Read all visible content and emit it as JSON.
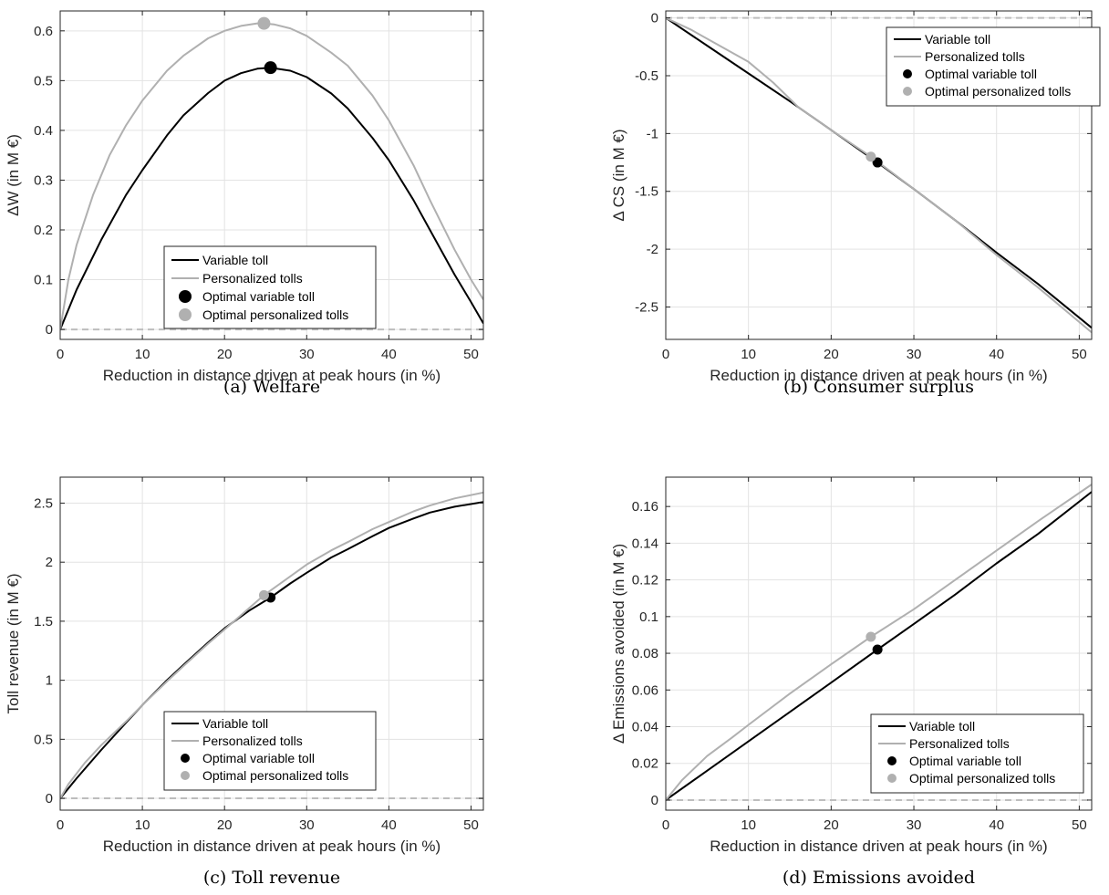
{
  "colors": {
    "variable": "#000000",
    "personalized": "#b0b0b0",
    "zero_line": "#bdbdbd",
    "grid": "#e3e3e3",
    "axis": "#262626"
  },
  "chart_data": [
    {
      "type": "line",
      "caption": "(a) Welfare",
      "xlabel": "Reduction in distance driven at peak hours (in %)",
      "ylabel": "ΔW (in M €)",
      "xlim": [
        0,
        51.5
      ],
      "ylim": [
        -0.02,
        0.64
      ],
      "xticks": [
        0,
        10,
        20,
        30,
        40,
        50
      ],
      "yticks": [
        0,
        0.1,
        0.2,
        0.3,
        0.4,
        0.5,
        0.6
      ],
      "ytick_labels": [
        "0",
        "0.1",
        "0.2",
        "0.3",
        "0.4",
        "0.5",
        "0.6"
      ],
      "grid": true,
      "legend_position": "bottom-center",
      "series": [
        {
          "name": "Variable toll",
          "style": "line",
          "color_key": "variable",
          "x": [
            0,
            2,
            5,
            8,
            10,
            13,
            15,
            18,
            20,
            22,
            24,
            25.6,
            28,
            30,
            33,
            35,
            38,
            40,
            43,
            45,
            48,
            50,
            51.5
          ],
          "y": [
            0,
            0.08,
            0.18,
            0.27,
            0.32,
            0.39,
            0.43,
            0.475,
            0.5,
            0.515,
            0.524,
            0.526,
            0.52,
            0.507,
            0.474,
            0.444,
            0.385,
            0.34,
            0.26,
            0.2,
            0.11,
            0.055,
            0.012
          ]
        },
        {
          "name": "Personalized tolls",
          "style": "line",
          "color_key": "personalized",
          "x": [
            0,
            1,
            2,
            4,
            6,
            8,
            10,
            13,
            15,
            18,
            20,
            22,
            24,
            24.8,
            26,
            28,
            30,
            33,
            35,
            38,
            40,
            43,
            45,
            48,
            50,
            51.5
          ],
          "y": [
            0,
            0.1,
            0.17,
            0.27,
            0.35,
            0.41,
            0.46,
            0.52,
            0.55,
            0.585,
            0.6,
            0.61,
            0.615,
            0.615,
            0.613,
            0.605,
            0.59,
            0.556,
            0.53,
            0.47,
            0.42,
            0.33,
            0.26,
            0.16,
            0.1,
            0.06
          ]
        },
        {
          "name": "Optimal variable toll",
          "style": "marker",
          "color_key": "variable",
          "x": [
            25.6
          ],
          "y": [
            0.526
          ]
        },
        {
          "name": "Optimal personalized tolls",
          "style": "marker",
          "color_key": "personalized",
          "x": [
            24.8
          ],
          "y": [
            0.615
          ]
        }
      ]
    },
    {
      "type": "line",
      "caption": "(b) Consumer surplus",
      "xlabel": "Reduction in distance driven at peak hours (in %)",
      "ylabel": "Δ CS (in M €)",
      "xlim": [
        0,
        51.5
      ],
      "ylim": [
        -2.78,
        0.06
      ],
      "xticks": [
        0,
        10,
        20,
        30,
        40,
        50
      ],
      "yticks": [
        0,
        -0.5,
        -1,
        -1.5,
        -2,
        -2.5
      ],
      "ytick_labels": [
        "0",
        "-0.5",
        "-1",
        "-1.5",
        "-2",
        "-2.5"
      ],
      "grid": true,
      "legend_position": "top-right",
      "series": [
        {
          "name": "Variable toll",
          "style": "line",
          "color_key": "variable",
          "x": [
            0,
            5,
            10,
            15,
            20,
            25.6,
            30,
            35,
            40,
            45,
            51.5
          ],
          "y": [
            0,
            -0.24,
            -0.48,
            -0.72,
            -0.97,
            -1.25,
            -1.48,
            -1.75,
            -2.03,
            -2.3,
            -2.68
          ]
        },
        {
          "name": "Personalized tolls",
          "style": "line",
          "color_key": "personalized",
          "x": [
            0,
            3,
            6,
            10,
            13,
            16,
            20,
            24.8,
            30,
            35,
            40,
            45,
            51.5
          ],
          "y": [
            0,
            -0.1,
            -0.22,
            -0.38,
            -0.56,
            -0.77,
            -0.97,
            -1.2,
            -1.48,
            -1.75,
            -2.05,
            -2.33,
            -2.72
          ]
        },
        {
          "name": "Optimal variable toll",
          "style": "marker",
          "color_key": "variable",
          "x": [
            25.6
          ],
          "y": [
            -1.25
          ]
        },
        {
          "name": "Optimal personalized tolls",
          "style": "marker",
          "color_key": "personalized",
          "x": [
            24.8
          ],
          "y": [
            -1.2
          ]
        }
      ]
    },
    {
      "type": "line",
      "caption": "(c) Toll revenue",
      "xlabel": "Reduction in distance driven at peak hours (in %)",
      "ylabel": "Toll revenue (in M €)",
      "xlim": [
        0,
        51.5
      ],
      "ylim": [
        -0.1,
        2.72
      ],
      "xticks": [
        0,
        10,
        20,
        30,
        40,
        50
      ],
      "yticks": [
        0,
        0.5,
        1,
        1.5,
        2,
        2.5
      ],
      "ytick_labels": [
        "0",
        "0.5",
        "1",
        "1.5",
        "2",
        "2.5"
      ],
      "grid": true,
      "legend_position": "bottom-center",
      "series": [
        {
          "name": "Variable toll",
          "style": "line",
          "color_key": "variable",
          "x": [
            0,
            2,
            5,
            8,
            10,
            13,
            15,
            18,
            20,
            23,
            25.6,
            28,
            30,
            33,
            35,
            38,
            40,
            43,
            45,
            48,
            51.5
          ],
          "y": [
            0,
            0.17,
            0.41,
            0.64,
            0.79,
            1.0,
            1.13,
            1.32,
            1.44,
            1.59,
            1.7,
            1.82,
            1.91,
            2.04,
            2.11,
            2.22,
            2.29,
            2.37,
            2.42,
            2.47,
            2.51
          ]
        },
        {
          "name": "Personalized tolls",
          "style": "line",
          "color_key": "personalized",
          "x": [
            0,
            1,
            3,
            5,
            8,
            10,
            13,
            15,
            18,
            20,
            22,
            24.8,
            27,
            30,
            33,
            35,
            38,
            40,
            43,
            45,
            48,
            51.5
          ],
          "y": [
            0,
            0.12,
            0.3,
            0.45,
            0.65,
            0.79,
            0.99,
            1.12,
            1.31,
            1.43,
            1.55,
            1.72,
            1.83,
            1.98,
            2.1,
            2.17,
            2.28,
            2.34,
            2.43,
            2.48,
            2.54,
            2.59
          ]
        },
        {
          "name": "Optimal variable toll",
          "style": "marker",
          "color_key": "variable",
          "x": [
            25.6
          ],
          "y": [
            1.7
          ]
        },
        {
          "name": "Optimal personalized tolls",
          "style": "marker",
          "color_key": "personalized",
          "x": [
            24.8
          ],
          "y": [
            1.72
          ]
        }
      ]
    },
    {
      "type": "line",
      "caption": "(d) Emissions avoided",
      "xlabel": "Reduction in distance driven at peak hours (in %)",
      "ylabel": "Δ Emissions avoided (in M €)",
      "xlim": [
        0,
        51.5
      ],
      "ylim": [
        -0.0055,
        0.176
      ],
      "xticks": [
        0,
        10,
        20,
        30,
        40,
        50
      ],
      "yticks": [
        0,
        0.02,
        0.04,
        0.06,
        0.08,
        0.1,
        0.12,
        0.14,
        0.16
      ],
      "ytick_labels": [
        "0",
        "0.02",
        "0.04",
        "0.06",
        "0.08",
        "0.1",
        "0.12",
        "0.14",
        "0.16"
      ],
      "grid": true,
      "legend_position": "bottom-right",
      "series": [
        {
          "name": "Variable toll",
          "style": "line",
          "color_key": "variable",
          "x": [
            0,
            5,
            10,
            15,
            20,
            25.6,
            30,
            35,
            40,
            45,
            51.5
          ],
          "y": [
            0,
            0.016,
            0.032,
            0.048,
            0.064,
            0.082,
            0.096,
            0.112,
            0.129,
            0.145,
            0.168
          ]
        },
        {
          "name": "Personalized tolls",
          "style": "line",
          "color_key": "personalized",
          "x": [
            0,
            2,
            5,
            8,
            10,
            15,
            20,
            24.8,
            30,
            35,
            40,
            45,
            51.5
          ],
          "y": [
            0,
            0.011,
            0.024,
            0.034,
            0.041,
            0.058,
            0.074,
            0.089,
            0.104,
            0.12,
            0.136,
            0.152,
            0.172
          ]
        },
        {
          "name": "Optimal variable toll",
          "style": "marker",
          "color_key": "variable",
          "x": [
            25.6
          ],
          "y": [
            0.082
          ]
        },
        {
          "name": "Optimal personalized tolls",
          "style": "marker",
          "color_key": "personalized",
          "x": [
            24.8
          ],
          "y": [
            0.089
          ]
        }
      ]
    }
  ]
}
